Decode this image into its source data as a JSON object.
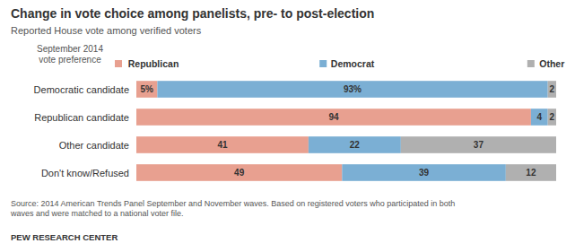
{
  "chart_data": {
    "type": "bar",
    "orientation": "horizontal",
    "stacked": true,
    "title": "Change in vote choice among panelists, pre- to post-election",
    "subtitle": "Reported House vote among verified voters",
    "y_label": "September 2014\nvote preference",
    "categories": [
      "Democratic candidate",
      "Republican candidate",
      "Other candidate",
      "Don't know/Refused"
    ],
    "series": [
      {
        "name": "Republican",
        "color": "#e8a090",
        "values": [
          5,
          94,
          41,
          49
        ],
        "value_labels": [
          "5%",
          "94",
          "41",
          "49"
        ]
      },
      {
        "name": "Democrat",
        "color": "#7bafd4",
        "values": [
          93,
          4,
          22,
          39
        ],
        "value_labels": [
          "93%",
          "4",
          "22",
          "39"
        ]
      },
      {
        "name": "Other",
        "color": "#b0b0b0",
        "values": [
          2,
          2,
          37,
          12
        ]
      }
    ],
    "xlim": [
      0,
      100
    ],
    "data_labels": true,
    "tick_labels": "y",
    "legend": "top",
    "source": "Source: 2014 American Trends Panel September and November waves. Based on registered voters who participated in both\nwaves and were matched to a national voter file.",
    "footer": "PEW RESEARCH CENTER"
  }
}
